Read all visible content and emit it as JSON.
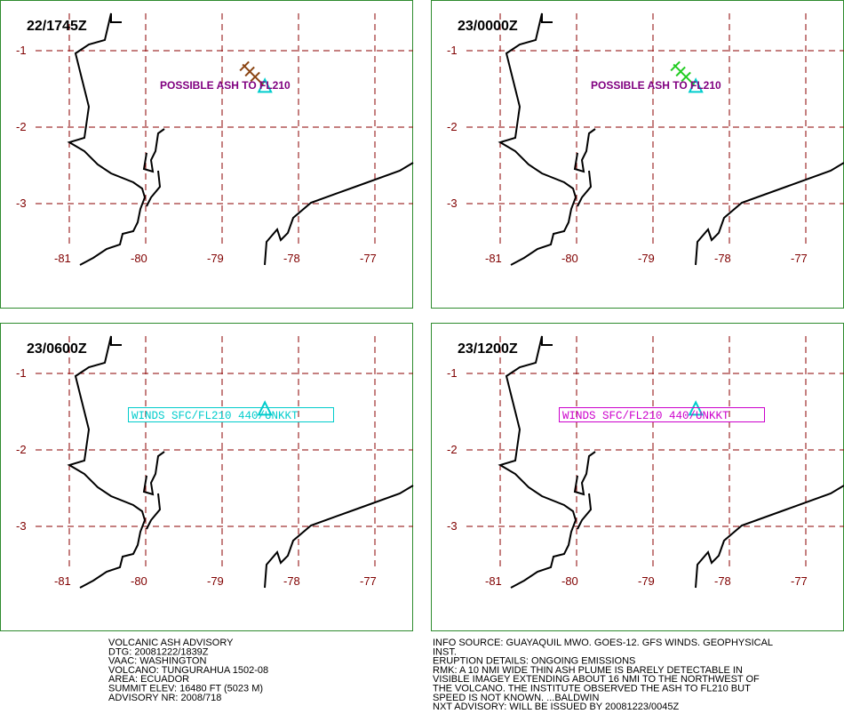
{
  "grid": {
    "latitudes": [
      -1,
      -2,
      -3
    ],
    "longitudes": [
      -81,
      -80,
      -79,
      -78,
      -77
    ]
  },
  "volcano": {
    "lon": -78.44,
    "lat": -1.47
  },
  "panels": [
    {
      "time": "22/1745Z",
      "annotation": "POSSIBLE ASH TO FL210",
      "style": "plain",
      "color": "#800080",
      "ash_color": "#8b4513"
    },
    {
      "time": "23/0000Z",
      "annotation": "POSSIBLE ASH TO FL210",
      "style": "plain",
      "color": "#800080",
      "ash_color": "#22cc22"
    },
    {
      "time": "23/0600Z",
      "annotation": "WINDS SFC/FL210 440/UNKKT",
      "style": "boxed",
      "color": "#00cccc"
    },
    {
      "time": "23/1200Z",
      "annotation": "WINDS SFC/FL210 440/UNKKT",
      "style": "boxed",
      "color": "#cc00cc"
    }
  ],
  "advisory": {
    "left": [
      "VOLCANIC ASH ADVISORY",
      "DTG: 20081222/1839Z",
      "VAAC: WASHINGTON",
      "VOLCANO: TUNGURAHUA 1502-08",
      "AREA: ECUADOR",
      "SUMMIT ELEV: 16480 FT (5023 M)",
      "ADVISORY NR: 2008/718"
    ],
    "right": [
      "INFO SOURCE: GUAYAQUIL MWO. GOES-12. GFS WINDS. GEOPHYSICAL",
      "INST.",
      "ERUPTION DETAILS: ONGOING EMISSIONS",
      "RMK: A 10 NMI WIDE THIN ASH PLUME IS BARELY DETECTABLE IN",
      "VISIBLE IMAGEY EXTENDING ABOUT 16 NMI TO THE NORTHWEST OF",
      "THE VOLCANO. THE INSTITUTE OBSERVED THE ASH TO FL210 BUT",
      "SPEED IS NOT KNOWN. ...BALDWIN",
      "NXT ADVISORY: WILL BE ISSUED BY 20081223/0045Z"
    ]
  }
}
